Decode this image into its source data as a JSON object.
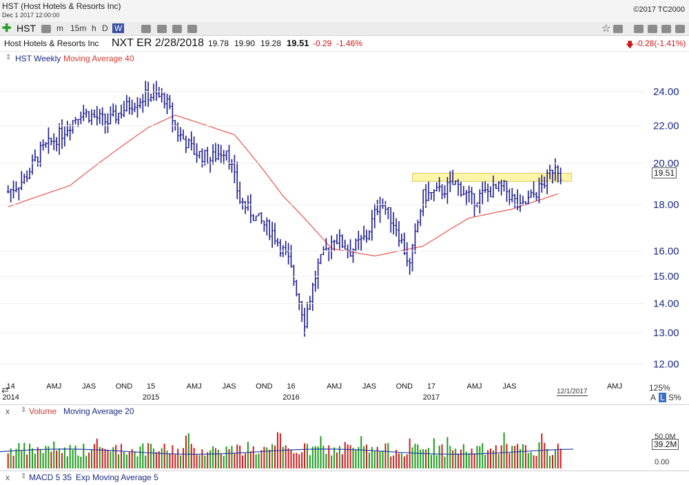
{
  "header": {
    "title": "HST (Host Hotels & Resorts Inc)",
    "datetime": "Dec 1 2017 12:00:00",
    "copyright": "©2017 TC2000"
  },
  "toolbar": {
    "symbol": "HST",
    "timeframes": [
      "m",
      "15m",
      "h",
      "D",
      "W"
    ],
    "selected_timeframe": "W"
  },
  "quote": {
    "name": "Host Hotels & Resorts Inc",
    "next_earnings": "NXT ER 2/28/2018",
    "high": "19.78",
    "high2": "19.90",
    "low": "19.28",
    "last": "19.51",
    "change": "-0.29",
    "change_pct": "-1.46%",
    "alt_change": "-0.28(-1.41%)"
  },
  "panels": {
    "price_legend": [
      "HST Weekly",
      "Moving Average 40"
    ],
    "volume_legend": [
      "Volume",
      "Moving Average 20"
    ],
    "macd_legend": [
      "MACD 5 35",
      "Exp Moving Average 5"
    ],
    "last_price_tag": "19.51",
    "volume_tag": "39.2M",
    "volume_axis_labels": [
      "50.0M",
      "0.00"
    ],
    "date_marker": "12/1/2017",
    "zoom": "125%",
    "scale_mode": "A",
    "scale_mode2": "L",
    "scale_mode3": "S%"
  },
  "colors": {
    "price_bars": "#1a1a8c",
    "ma40": "#e8544a",
    "volume_up": "#1a9a1a",
    "volume_down": "#cc1a1a",
    "volume_ma": "#1f3fa8",
    "zone_fill": "#fff5a8",
    "axis_text": "#1a2a80"
  },
  "chart_data": {
    "type": "ohlc",
    "title": "HST Weekly",
    "y_scale": "log",
    "ylim": [
      11.6,
      25.6
    ],
    "yticks": [
      "24.00",
      "22.00",
      "20.00",
      "18.00",
      "16.00",
      "15.00",
      "14.00",
      "13.00",
      "12.00"
    ],
    "x_labels": [
      {
        "label": "14",
        "year": "2014"
      },
      {
        "label": "AMJ"
      },
      {
        "label": "JAS"
      },
      {
        "label": "OND"
      },
      {
        "label": "15",
        "year": "2015"
      },
      {
        "label": "AMJ"
      },
      {
        "label": "JAS"
      },
      {
        "label": "OND"
      },
      {
        "label": "16",
        "year": "2016"
      },
      {
        "label": "AMJ"
      },
      {
        "label": "JAS"
      },
      {
        "label": "OND"
      },
      {
        "label": "17",
        "year": "2017"
      },
      {
        "label": "AMJ"
      },
      {
        "label": "JAS"
      },
      {
        "label": "AMJ"
      }
    ],
    "weekly_close_keypoints": [
      [
        "2013-12-27",
        18.6
      ],
      [
        "2014-02-07",
        19.2
      ],
      [
        "2014-03-21",
        20.6
      ],
      [
        "2014-05-16",
        21.6
      ],
      [
        "2014-07-04",
        22.8
      ],
      [
        "2014-09-12",
        22.2
      ],
      [
        "2014-11-07",
        23.2
      ],
      [
        "2014-12-26",
        23.8
      ],
      [
        "2015-02-06",
        23.6
      ],
      [
        "2015-03-13",
        21.6
      ],
      [
        "2015-04-24",
        20.6
      ],
      [
        "2015-06-05",
        20.2
      ],
      [
        "2015-07-17",
        20.8
      ],
      [
        "2015-08-21",
        18.2
      ],
      [
        "2015-10-02",
        17.4
      ],
      [
        "2015-11-13",
        16.8
      ],
      [
        "2015-12-25",
        15.6
      ],
      [
        "2016-02-05",
        13.4
      ],
      [
        "2016-03-11",
        15.4
      ],
      [
        "2016-04-22",
        16.6
      ],
      [
        "2016-06-03",
        16.0
      ],
      [
        "2016-07-15",
        16.6
      ],
      [
        "2016-08-19",
        18.2
      ],
      [
        "2016-09-30",
        17.0
      ],
      [
        "2016-11-04",
        15.4
      ],
      [
        "2016-12-09",
        18.4
      ],
      [
        "2017-01-20",
        18.6
      ],
      [
        "2017-03-03",
        19.0
      ],
      [
        "2017-04-14",
        18.2
      ],
      [
        "2017-05-26",
        18.6
      ],
      [
        "2017-07-07",
        18.8
      ],
      [
        "2017-08-18",
        17.8
      ],
      [
        "2017-09-29",
        18.6
      ],
      [
        "2017-10-27",
        19.2
      ],
      [
        "2017-11-17",
        20.0
      ],
      [
        "2017-12-01",
        19.51
      ]
    ],
    "ma40_keypoints": [
      [
        "2013-12-27",
        17.9
      ],
      [
        "2014-06-06",
        18.9
      ],
      [
        "2014-12-26",
        21.9
      ],
      [
        "2015-03-06",
        22.6
      ],
      [
        "2015-08-07",
        21.5
      ],
      [
        "2015-12-11",
        18.4
      ],
      [
        "2016-04-15",
        16.1
      ],
      [
        "2016-08-05",
        15.8
      ],
      [
        "2016-12-09",
        16.2
      ],
      [
        "2017-04-07",
        17.4
      ],
      [
        "2017-07-28",
        17.8
      ],
      [
        "2017-11-24",
        18.5
      ]
    ],
    "resistance_zone": {
      "from": "2016-11-11",
      "to": "2017-12-29",
      "low": 19.1,
      "high": 19.5
    },
    "volume_ylim": [
      0,
      80
    ],
    "volume_unit": "M"
  }
}
